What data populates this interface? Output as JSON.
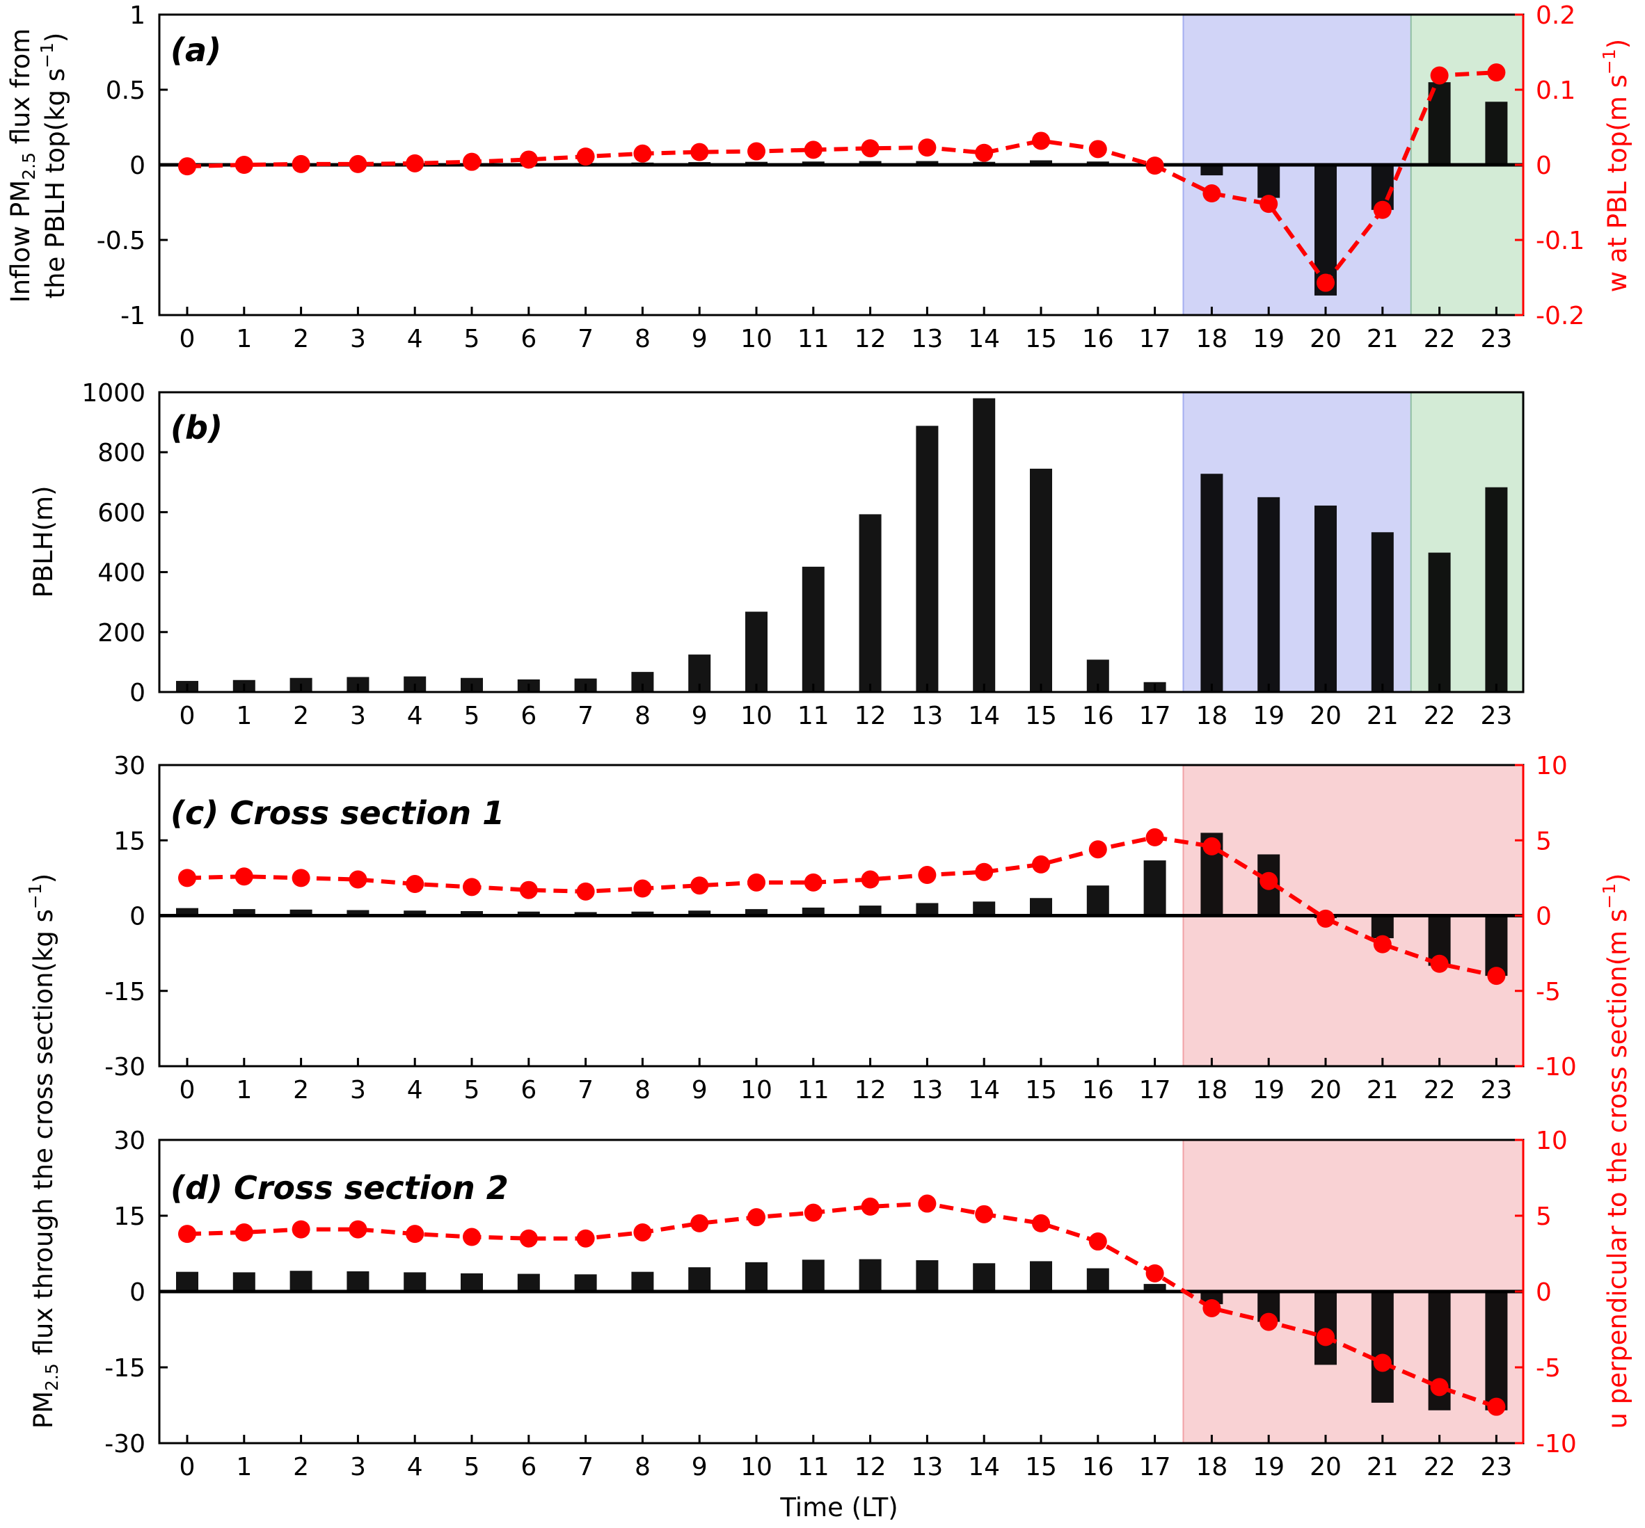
{
  "chart_data": [
    {
      "type": "bar",
      "panel_label": "(a)",
      "categories": [
        "0",
        "1",
        "2",
        "3",
        "4",
        "5",
        "6",
        "7",
        "8",
        "9",
        "10",
        "11",
        "12",
        "13",
        "14",
        "15",
        "16",
        "17",
        "18",
        "19",
        "20",
        "21",
        "22",
        "23"
      ],
      "ylabel": [
        "Inflow PM",
        "2.5",
        " flux from",
        "the PBLH top(kg s",
        "−1",
        ")"
      ],
      "y2label": [
        "w at PBL top(m s",
        "−1",
        ")"
      ],
      "ylim": [
        -1,
        1
      ],
      "yticks": [
        -1,
        -0.5,
        0,
        0.5,
        1
      ],
      "ytick_labels": [
        "-1",
        "-0.5",
        "0",
        "0.5",
        "1"
      ],
      "y2lim": [
        -0.2,
        0.2
      ],
      "y2ticks": [
        -0.2,
        -0.1,
        0,
        0.1,
        0.2
      ],
      "y2tick_labels": [
        "-0.2",
        "-0.1",
        "0",
        "0.1",
        "0.2"
      ],
      "shading": [
        {
          "from": 17.5,
          "to": 21.5,
          "color": "#d1d4f7",
          "edge": "#a4aef0"
        },
        {
          "from": 21.5,
          "to": 23.5,
          "color": "#d3ebd6",
          "edge": "#8fbfa2"
        }
      ],
      "series": [
        {
          "kind": "bar",
          "axis": "left",
          "values": [
            0.005,
            0.005,
            0.005,
            0.005,
            0.006,
            0.008,
            0.01,
            0.012,
            0.015,
            0.018,
            0.02,
            0.022,
            0.025,
            0.025,
            0.02,
            0.03,
            0.022,
            0.005,
            -0.07,
            -0.22,
            -0.87,
            -0.3,
            0.55,
            0.42
          ]
        },
        {
          "kind": "line",
          "axis": "right",
          "values": [
            -0.002,
            0.0,
            0.001,
            0.001,
            0.002,
            0.004,
            0.007,
            0.011,
            0.015,
            0.017,
            0.018,
            0.02,
            0.022,
            0.023,
            0.016,
            0.032,
            0.021,
            -0.001,
            -0.038,
            -0.052,
            -0.157,
            -0.06,
            0.119,
            0.123
          ]
        }
      ]
    },
    {
      "type": "bar",
      "panel_label": "(b)",
      "categories": [
        "0",
        "1",
        "2",
        "3",
        "4",
        "5",
        "6",
        "7",
        "8",
        "9",
        "10",
        "11",
        "12",
        "13",
        "14",
        "15",
        "16",
        "17",
        "18",
        "19",
        "20",
        "21",
        "22",
        "23"
      ],
      "ylabel": [
        "PBLH(m)"
      ],
      "ylim": [
        0,
        1000
      ],
      "yticks": [
        0,
        200,
        400,
        600,
        800,
        1000
      ],
      "ytick_labels": [
        "0",
        "200",
        "400",
        "600",
        "800",
        "1000"
      ],
      "shading": [
        {
          "from": 17.5,
          "to": 21.5,
          "color": "#d1d4f7",
          "edge": "#a4aef0"
        },
        {
          "from": 21.5,
          "to": 23.5,
          "color": "#d3ebd6",
          "edge": "#8fbfa2"
        }
      ],
      "series": [
        {
          "kind": "bar",
          "axis": "left",
          "values": [
            37,
            40,
            47,
            50,
            52,
            47,
            42,
            45,
            67,
            125,
            268,
            418,
            593,
            888,
            980,
            745,
            108,
            33,
            728,
            650,
            622,
            533,
            465,
            683
          ]
        }
      ]
    },
    {
      "type": "bar",
      "panel_label": "(c) Cross section 1",
      "categories": [
        "0",
        "1",
        "2",
        "3",
        "4",
        "5",
        "6",
        "7",
        "8",
        "9",
        "10",
        "11",
        "12",
        "13",
        "14",
        "15",
        "16",
        "17",
        "18",
        "19",
        "20",
        "21",
        "22",
        "23"
      ],
      "ylim": [
        -30,
        30
      ],
      "yticks": [
        -30,
        -15,
        0,
        15,
        30
      ],
      "ytick_labels": [
        "-30",
        "-15",
        "0",
        "15",
        "30"
      ],
      "y2lim": [
        -10,
        10
      ],
      "y2ticks": [
        -10,
        -5,
        0,
        5,
        10
      ],
      "y2tick_labels": [
        "-10",
        "-5",
        "0",
        "5",
        "10"
      ],
      "shading": [
        {
          "from": 17.5,
          "to": 23.5,
          "color": "#f9d2d4",
          "edge": "#f1a2a6"
        }
      ],
      "series": [
        {
          "kind": "bar",
          "axis": "left",
          "values": [
            1.5,
            1.3,
            1.2,
            1.1,
            1.0,
            0.9,
            0.8,
            0.7,
            0.8,
            1.0,
            1.3,
            1.6,
            2.0,
            2.5,
            2.8,
            3.5,
            6.0,
            11.0,
            16.5,
            12.2,
            -0.5,
            -4.5,
            -10,
            -12
          ]
        },
        {
          "kind": "line",
          "axis": "right",
          "values": [
            2.5,
            2.6,
            2.5,
            2.4,
            2.1,
            1.9,
            1.7,
            1.6,
            1.8,
            2.0,
            2.2,
            2.2,
            2.4,
            2.7,
            2.9,
            3.4,
            4.4,
            5.2,
            4.6,
            2.3,
            -0.2,
            -1.9,
            -3.2,
            -4.0
          ]
        }
      ]
    },
    {
      "type": "bar",
      "panel_label": "(d) Cross section 2",
      "categories": [
        "0",
        "1",
        "2",
        "3",
        "4",
        "5",
        "6",
        "7",
        "8",
        "9",
        "10",
        "11",
        "12",
        "13",
        "14",
        "15",
        "16",
        "17",
        "18",
        "19",
        "20",
        "21",
        "22",
        "23"
      ],
      "xlabel": "Time (LT)",
      "ylim": [
        -30,
        30
      ],
      "yticks": [
        -30,
        -15,
        0,
        15,
        30
      ],
      "ytick_labels": [
        "-30",
        "-15",
        "0",
        "15",
        "30"
      ],
      "y2lim": [
        -10,
        10
      ],
      "y2ticks": [
        -10,
        -5,
        0,
        5,
        10
      ],
      "y2tick_labels": [
        "-10",
        "-5",
        "0",
        "5",
        "10"
      ],
      "shading": [
        {
          "from": 17.5,
          "to": 23.5,
          "color": "#f9d2d4",
          "edge": "#f1a2a6"
        }
      ],
      "series": [
        {
          "kind": "bar",
          "axis": "left",
          "values": [
            3.9,
            3.8,
            4.1,
            4.0,
            3.8,
            3.6,
            3.5,
            3.4,
            3.9,
            4.8,
            5.8,
            6.3,
            6.4,
            6.2,
            5.6,
            6.0,
            4.6,
            1.5,
            -2.5,
            -6.0,
            -14.5,
            -22.0,
            -23.5,
            -23.5
          ]
        },
        {
          "kind": "line",
          "axis": "right",
          "values": [
            3.8,
            3.9,
            4.1,
            4.1,
            3.8,
            3.6,
            3.5,
            3.5,
            3.9,
            4.5,
            4.9,
            5.2,
            5.6,
            5.8,
            5.1,
            4.5,
            3.3,
            1.2,
            -1.1,
            -2.0,
            -3.0,
            -4.7,
            -6.3,
            -7.6
          ]
        }
      ]
    }
  ],
  "shared_labels": {
    "left_lower": [
      "PM",
      "2.5",
      " flux through the cross section(kg s",
      "−1",
      ")"
    ],
    "right_lower": [
      "u perpendicular to the cross section(m s",
      "−1",
      ")"
    ]
  },
  "colors": {
    "bar": "#000000",
    "line": "#ff0000",
    "axis_red": "#ff0000"
  }
}
